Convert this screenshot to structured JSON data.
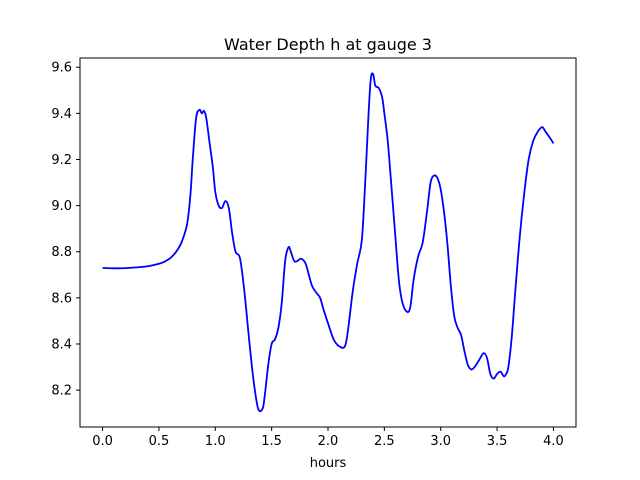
{
  "chart_data": {
    "type": "line",
    "title": "Water Depth h at gauge 3",
    "xlabel": "hours",
    "ylabel": "",
    "xlim": [
      -0.2,
      4.2
    ],
    "ylim": [
      8.04,
      9.64
    ],
    "x_ticks": [
      0.0,
      0.5,
      1.0,
      1.5,
      2.0,
      2.5,
      3.0,
      3.5,
      4.0
    ],
    "x_tick_labels": [
      "0.0",
      "0.5",
      "1.0",
      "1.5",
      "2.0",
      "2.5",
      "3.0",
      "3.5",
      "4.0"
    ],
    "y_ticks": [
      8.2,
      8.4,
      8.6,
      8.8,
      9.0,
      9.2,
      9.4,
      9.6
    ],
    "y_tick_labels": [
      "8.2",
      "8.4",
      "8.6",
      "8.8",
      "9.0",
      "9.2",
      "9.4",
      "9.6"
    ],
    "grid": false,
    "legend": "none",
    "series": [
      {
        "color": "#0000ff",
        "x": [
          0.0,
          0.1,
          0.2,
          0.3,
          0.4,
          0.5,
          0.55,
          0.6,
          0.65,
          0.7,
          0.75,
          0.78,
          0.8,
          0.83,
          0.86,
          0.88,
          0.9,
          0.92,
          0.95,
          0.98,
          1.0,
          1.03,
          1.06,
          1.09,
          1.12,
          1.15,
          1.18,
          1.22,
          1.26,
          1.3,
          1.34,
          1.38,
          1.42,
          1.44,
          1.47,
          1.5,
          1.53,
          1.56,
          1.59,
          1.62,
          1.65,
          1.67,
          1.7,
          1.73,
          1.76,
          1.8,
          1.83,
          1.86,
          1.9,
          1.93,
          1.96,
          2.0,
          2.05,
          2.1,
          2.15,
          2.18,
          2.22,
          2.26,
          2.3,
          2.33,
          2.36,
          2.38,
          2.4,
          2.42,
          2.45,
          2.48,
          2.5,
          2.53,
          2.56,
          2.6,
          2.63,
          2.66,
          2.7,
          2.73,
          2.76,
          2.8,
          2.84,
          2.88,
          2.91,
          2.94,
          2.97,
          3.0,
          3.03,
          3.06,
          3.09,
          3.12,
          3.15,
          3.18,
          3.21,
          3.24,
          3.27,
          3.3,
          3.34,
          3.38,
          3.41,
          3.44,
          3.47,
          3.5,
          3.53,
          3.56,
          3.58,
          3.6,
          3.63,
          3.66,
          3.7,
          3.74,
          3.78,
          3.82,
          3.86,
          3.9,
          3.93,
          3.96,
          4.0
        ],
        "y": [
          8.73,
          8.728,
          8.729,
          8.732,
          8.737,
          8.748,
          8.757,
          8.772,
          8.798,
          8.84,
          8.92,
          9.05,
          9.2,
          9.38,
          9.415,
          9.4,
          9.41,
          9.38,
          9.27,
          9.16,
          9.06,
          9.0,
          8.99,
          9.02,
          8.99,
          8.88,
          8.8,
          8.77,
          8.62,
          8.42,
          8.24,
          8.12,
          8.12,
          8.18,
          8.31,
          8.4,
          8.42,
          8.47,
          8.58,
          8.76,
          8.82,
          8.8,
          8.76,
          8.76,
          8.77,
          8.75,
          8.7,
          8.65,
          8.62,
          8.6,
          8.55,
          8.49,
          8.42,
          8.39,
          8.39,
          8.47,
          8.63,
          8.75,
          8.85,
          9.1,
          9.4,
          9.55,
          9.57,
          9.52,
          9.51,
          9.47,
          9.4,
          9.28,
          9.1,
          8.85,
          8.67,
          8.58,
          8.54,
          8.56,
          8.68,
          8.78,
          8.84,
          8.98,
          9.1,
          9.13,
          9.12,
          9.07,
          8.97,
          8.83,
          8.65,
          8.52,
          8.47,
          8.44,
          8.37,
          8.31,
          8.29,
          8.3,
          8.33,
          8.36,
          8.34,
          8.27,
          8.25,
          8.27,
          8.28,
          8.26,
          8.27,
          8.3,
          8.43,
          8.62,
          8.86,
          9.05,
          9.2,
          9.28,
          9.32,
          9.34,
          9.32,
          9.3,
          9.27
        ]
      }
    ]
  }
}
